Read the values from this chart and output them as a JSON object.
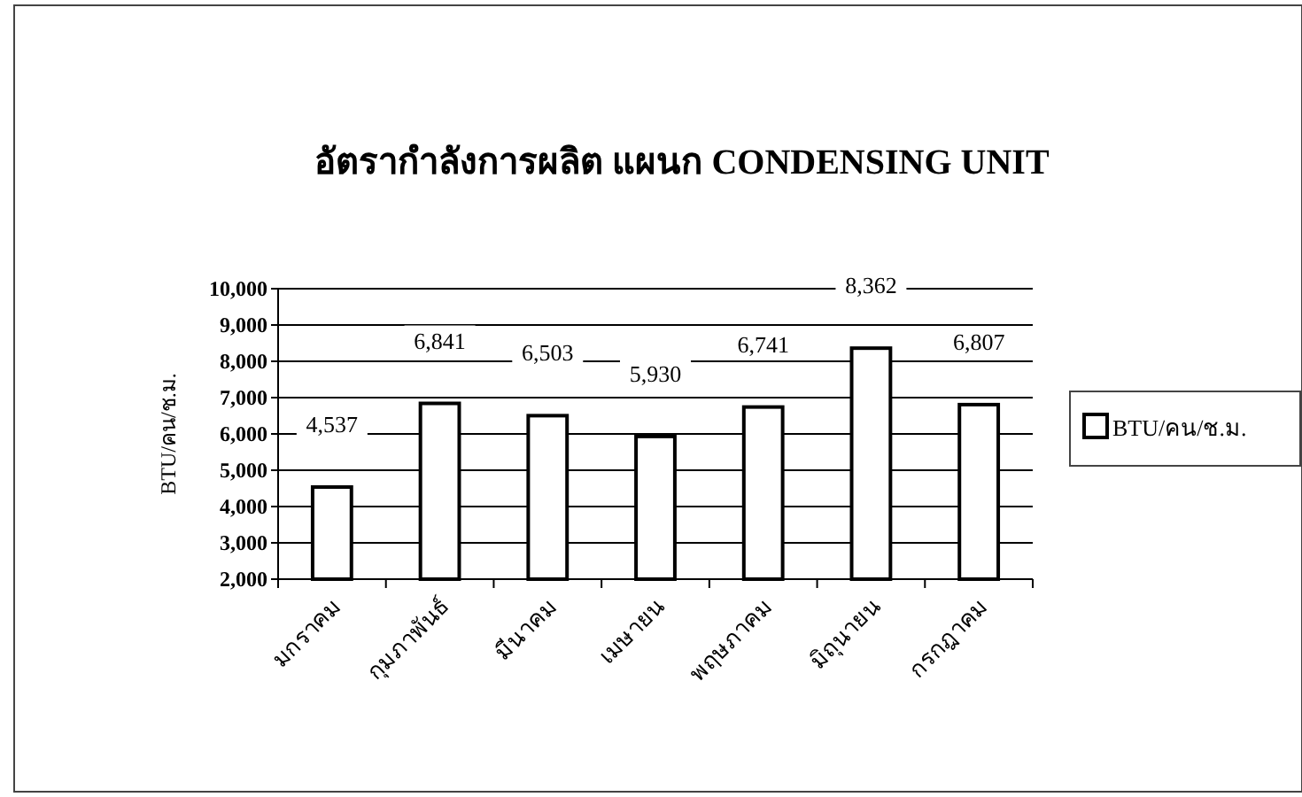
{
  "chart_data": {
    "type": "bar",
    "title": "อัตรากำลังการผลิต แผนก CONDENSING UNIT",
    "ylabel": "BTU/คน/ช.ม.",
    "categories": [
      "มกราคม",
      "กุมภาพันธ์",
      "มีนาคม",
      "เมษายน",
      "พฤษภาคม",
      "มิถุนายน",
      "กรกฎาคม"
    ],
    "series": [
      {
        "name": "BTU/คน/ช.ม.",
        "color": "#ffffff",
        "values": [
          4537,
          6841,
          6503,
          5930,
          6741,
          8362,
          6807
        ]
      }
    ],
    "value_labels": [
      "4,537",
      "6,841",
      "6,503",
      "5,930",
      "6,741",
      "8,362",
      "6,807"
    ],
    "ylim": [
      2000,
      10000
    ],
    "yticks": [
      {
        "value": 2000,
        "label": "2,000"
      },
      {
        "value": 3000,
        "label": "3,000"
      },
      {
        "value": 4000,
        "label": "4,000"
      },
      {
        "value": 5000,
        "label": "5,000"
      },
      {
        "value": 6000,
        "label": "6,000"
      },
      {
        "value": 7000,
        "label": "7,000"
      },
      {
        "value": 8000,
        "label": "8,000"
      },
      {
        "value": 9000,
        "label": "9,000"
      },
      {
        "value": 10000,
        "label": "10,000"
      }
    ],
    "grid": "y",
    "legend": "right"
  }
}
